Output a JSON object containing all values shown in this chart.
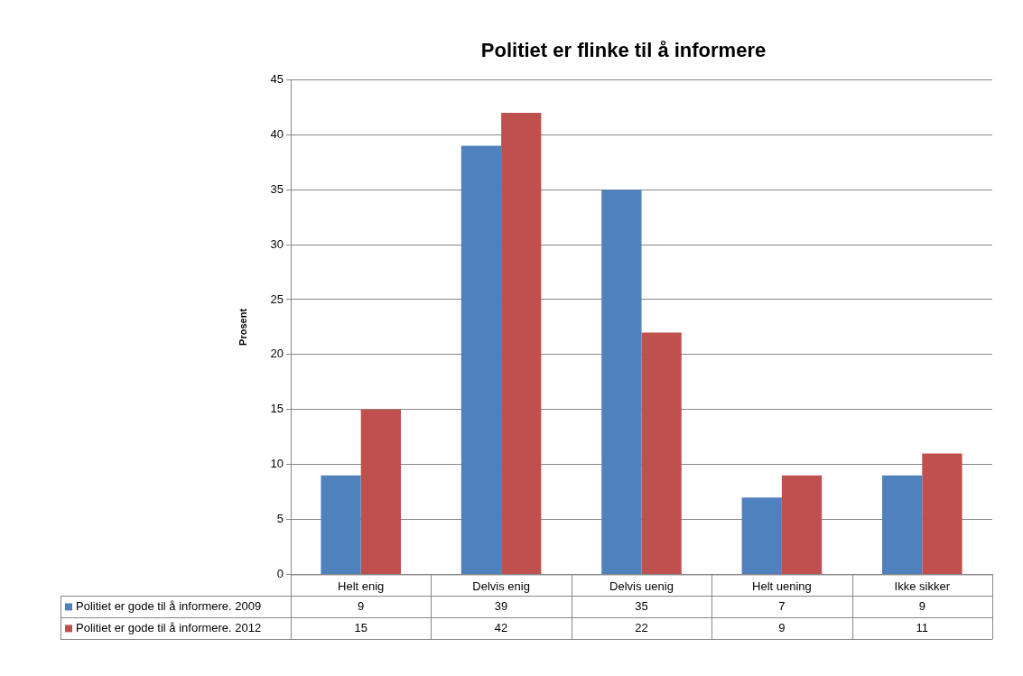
{
  "chart_data": {
    "type": "bar",
    "title": "Politiet er flinke til å informere",
    "ylabel": "Prosent",
    "categories": [
      "Helt enig",
      "Delvis enig",
      "Delvis uenig",
      "Helt uening",
      "Ikke sikker"
    ],
    "series": [
      {
        "name": "Politiet er gode til å informere. 2009",
        "color": "#4f81bd",
        "values": [
          9,
          39,
          35,
          7,
          9
        ]
      },
      {
        "name": "Politiet er gode til å informere. 2012",
        "color": "#c0504d",
        "values": [
          15,
          42,
          22,
          9,
          11
        ]
      }
    ],
    "ylim": [
      0,
      45
    ],
    "yticks": [
      0,
      5,
      10,
      15,
      20,
      25,
      30,
      35,
      40,
      45
    ],
    "grid": "y",
    "legend": "bottom",
    "data_labels": true
  }
}
